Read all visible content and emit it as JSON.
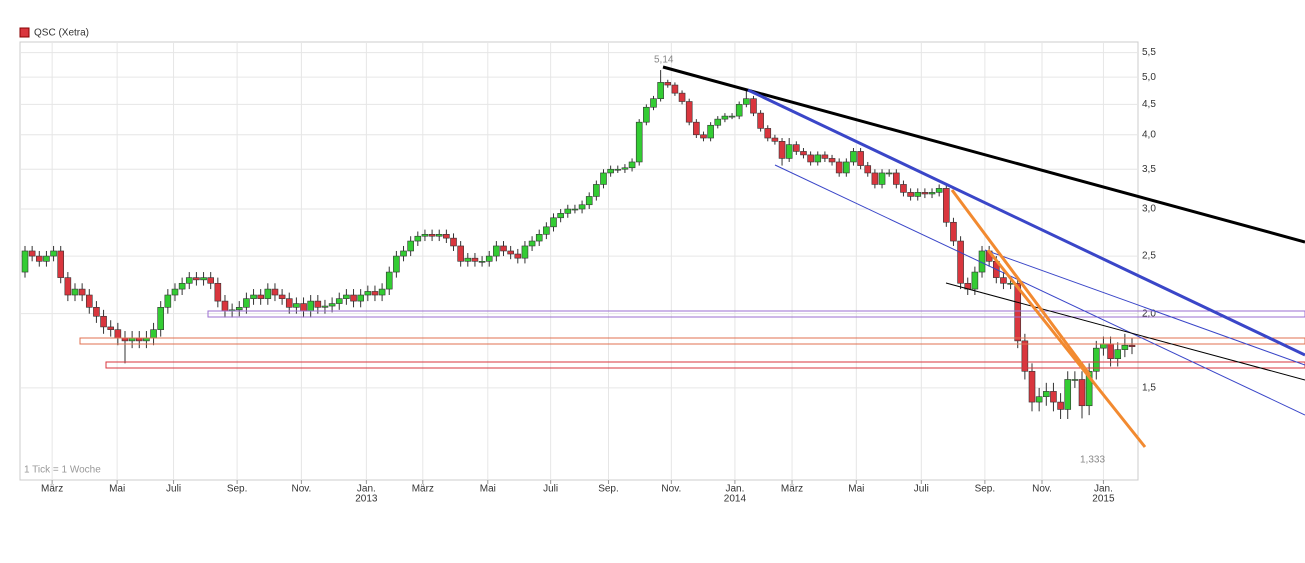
{
  "chart_data": {
    "type": "candlestick",
    "legend": "QSC (Xetra)",
    "footnote": "1 Tick = 1 Woche",
    "annotations": [
      {
        "text": "5,14"
      },
      {
        "text": "1,333"
      }
    ],
    "up_color": "#33cc33",
    "down_color": "#d9363e",
    "log_scale": true,
    "grid": true,
    "ylim": [
      1.05,
      5.73
    ],
    "yticks": [
      {
        "value": 1.5,
        "label": "1,5"
      },
      {
        "value": 2.0,
        "label": "2,0"
      },
      {
        "value": 2.5,
        "label": "2,5"
      },
      {
        "value": 3.0,
        "label": "3,0"
      },
      {
        "value": 3.5,
        "label": "3,5"
      },
      {
        "value": 4.0,
        "label": "4,0"
      },
      {
        "value": 4.5,
        "label": "4,5"
      },
      {
        "value": 5.0,
        "label": "5,0"
      },
      {
        "value": 5.5,
        "label": "5,5"
      }
    ],
    "xlim": [
      -0.7,
      155.7
    ],
    "xticks": [
      {
        "value": 3.8,
        "label": "März"
      },
      {
        "value": 12.9,
        "label": "Mai"
      },
      {
        "value": 20.8,
        "label": "Juli"
      },
      {
        "value": 29.7,
        "label": "Sep."
      },
      {
        "value": 38.7,
        "label": "Nov."
      },
      {
        "value": 47.8,
        "label": "Jan."
      },
      {
        "value": 55.7,
        "label": "März"
      },
      {
        "value": 64.8,
        "label": "Mai"
      },
      {
        "value": 73.6,
        "label": "Juli"
      },
      {
        "value": 81.7,
        "label": "Sep."
      },
      {
        "value": 90.5,
        "label": "Nov."
      },
      {
        "value": 99.4,
        "label": "Jan."
      },
      {
        "value": 107.4,
        "label": "März"
      },
      {
        "value": 116.4,
        "label": "Mai"
      },
      {
        "value": 125.5,
        "label": "Juli"
      },
      {
        "value": 134.4,
        "label": "Sep."
      },
      {
        "value": 142.4,
        "label": "Nov."
      },
      {
        "value": 151.0,
        "label": "Jan."
      }
    ],
    "year_labels": [
      {
        "value": 47.8,
        "label": "2013"
      },
      {
        "value": 99.4,
        "label": "2014"
      },
      {
        "value": 151.0,
        "label": "2015"
      }
    ],
    "open": [
      2.35,
      2.55,
      2.5,
      2.45,
      2.5,
      2.55,
      2.3,
      2.15,
      2.2,
      2.15,
      2.05,
      1.98,
      1.9,
      1.88,
      1.82,
      1.8,
      1.82,
      1.8,
      1.82,
      1.88,
      2.05,
      2.15,
      2.2,
      2.25,
      2.3,
      2.28,
      2.3,
      2.25,
      2.1,
      2.02,
      2.03,
      2.05,
      2.12,
      2.15,
      2.12,
      2.2,
      2.15,
      2.12,
      2.05,
      2.08,
      2.02,
      2.1,
      2.05,
      2.06,
      2.08,
      2.12,
      2.15,
      2.1,
      2.15,
      2.18,
      2.15,
      2.2,
      2.35,
      2.5,
      2.55,
      2.65,
      2.7,
      2.72,
      2.7,
      2.72,
      2.68,
      2.6,
      2.45,
      2.48,
      2.45,
      2.45,
      2.5,
      2.6,
      2.55,
      2.52,
      2.48,
      2.6,
      2.65,
      2.72,
      2.8,
      2.9,
      2.95,
      3.0,
      3.0,
      3.05,
      3.15,
      3.3,
      3.45,
      3.5,
      3.5,
      3.52,
      3.6,
      4.2,
      4.45,
      4.6,
      4.9,
      4.85,
      4.7,
      4.55,
      4.2,
      4.0,
      3.95,
      4.15,
      4.25,
      4.3,
      4.3,
      4.5,
      4.6,
      4.35,
      4.1,
      3.95,
      3.9,
      3.65,
      3.85,
      3.75,
      3.7,
      3.6,
      3.7,
      3.65,
      3.6,
      3.45,
      3.6,
      3.75,
      3.55,
      3.45,
      3.3,
      3.45,
      3.45,
      3.3,
      3.2,
      3.15,
      3.2,
      3.18,
      3.2,
      3.25,
      2.85,
      2.65,
      2.25,
      2.2,
      2.35,
      2.55,
      2.45,
      2.3,
      2.25,
      2.25,
      1.8,
      1.6,
      1.42,
      1.45,
      1.48,
      1.42,
      1.38,
      1.55,
      1.55,
      1.4,
      1.6,
      1.75,
      1.78,
      1.68,
      1.74,
      1.77
    ],
    "high": [
      2.6,
      2.6,
      2.55,
      2.55,
      2.6,
      2.6,
      2.35,
      2.25,
      2.25,
      2.2,
      2.1,
      2.03,
      1.95,
      1.93,
      1.87,
      1.87,
      1.87,
      1.87,
      1.93,
      2.1,
      2.2,
      2.25,
      2.3,
      2.35,
      2.35,
      2.35,
      2.35,
      2.3,
      2.15,
      2.08,
      2.1,
      2.17,
      2.2,
      2.2,
      2.25,
      2.25,
      2.2,
      2.17,
      2.13,
      2.13,
      2.15,
      2.15,
      2.11,
      2.13,
      2.17,
      2.2,
      2.2,
      2.2,
      2.23,
      2.23,
      2.25,
      2.4,
      2.55,
      2.6,
      2.7,
      2.75,
      2.77,
      2.77,
      2.77,
      2.77,
      2.73,
      2.65,
      2.53,
      2.53,
      2.5,
      2.55,
      2.65,
      2.65,
      2.6,
      2.57,
      2.65,
      2.7,
      2.77,
      2.85,
      2.95,
      3.0,
      3.05,
      3.05,
      3.1,
      3.2,
      3.35,
      3.5,
      3.55,
      3.55,
      3.57,
      3.65,
      4.25,
      4.5,
      4.65,
      5.14,
      4.95,
      4.9,
      4.75,
      4.6,
      4.25,
      4.05,
      4.2,
      4.3,
      4.35,
      4.35,
      4.55,
      4.75,
      4.65,
      4.4,
      4.15,
      4.0,
      3.95,
      3.95,
      3.9,
      3.8,
      3.75,
      3.75,
      3.75,
      3.7,
      3.65,
      3.65,
      3.8,
      3.8,
      3.6,
      3.5,
      3.5,
      3.5,
      3.5,
      3.35,
      3.25,
      3.25,
      3.25,
      3.25,
      3.3,
      3.3,
      2.9,
      2.7,
      2.3,
      2.4,
      2.6,
      2.6,
      2.5,
      2.35,
      2.3,
      2.3,
      1.85,
      1.65,
      1.5,
      1.53,
      1.53,
      1.47,
      1.6,
      1.6,
      1.6,
      1.65,
      1.8,
      1.83,
      1.83,
      1.79,
      1.85,
      1.82
    ],
    "low": [
      2.3,
      2.45,
      2.4,
      2.4,
      2.45,
      2.25,
      2.1,
      2.1,
      2.1,
      2.0,
      1.93,
      1.85,
      1.83,
      1.77,
      1.65,
      1.75,
      1.75,
      1.75,
      1.77,
      1.83,
      2.0,
      2.1,
      2.15,
      2.2,
      2.23,
      2.23,
      2.2,
      2.05,
      1.97,
      1.97,
      1.98,
      2.0,
      2.07,
      2.07,
      2.07,
      2.1,
      2.07,
      2.0,
      2.0,
      1.97,
      1.97,
      2.0,
      2.0,
      2.01,
      2.03,
      2.07,
      2.05,
      2.05,
      2.1,
      2.1,
      2.1,
      2.15,
      2.3,
      2.45,
      2.5,
      2.6,
      2.65,
      2.65,
      2.65,
      2.63,
      2.55,
      2.4,
      2.4,
      2.4,
      2.4,
      2.4,
      2.45,
      2.5,
      2.47,
      2.43,
      2.43,
      2.55,
      2.6,
      2.67,
      2.75,
      2.85,
      2.9,
      2.95,
      2.95,
      3.0,
      3.1,
      3.25,
      3.4,
      3.45,
      3.45,
      3.47,
      3.55,
      4.15,
      4.4,
      4.55,
      4.8,
      4.65,
      4.5,
      4.15,
      3.95,
      3.9,
      3.9,
      4.1,
      4.2,
      4.25,
      4.25,
      4.45,
      4.3,
      4.05,
      3.9,
      3.85,
      3.55,
      3.6,
      3.7,
      3.65,
      3.55,
      3.55,
      3.6,
      3.55,
      3.4,
      3.4,
      3.55,
      3.5,
      3.4,
      3.25,
      3.25,
      3.4,
      3.25,
      3.15,
      3.1,
      3.1,
      3.13,
      3.13,
      3.15,
      2.8,
      2.6,
      2.2,
      2.15,
      2.15,
      2.3,
      2.4,
      2.25,
      2.2,
      2.2,
      1.75,
      1.55,
      1.37,
      1.37,
      1.4,
      1.37,
      1.33,
      1.33,
      1.5,
      1.333,
      1.35,
      1.55,
      1.7,
      1.63,
      1.63,
      1.69,
      1.71
    ],
    "close": [
      2.55,
      2.5,
      2.45,
      2.5,
      2.55,
      2.3,
      2.15,
      2.2,
      2.15,
      2.05,
      1.98,
      1.9,
      1.88,
      1.82,
      1.8,
      1.82,
      1.8,
      1.82,
      1.88,
      2.05,
      2.15,
      2.2,
      2.25,
      2.3,
      2.28,
      2.3,
      2.25,
      2.1,
      2.02,
      2.03,
      2.05,
      2.12,
      2.15,
      2.12,
      2.2,
      2.15,
      2.12,
      2.05,
      2.08,
      2.02,
      2.1,
      2.05,
      2.06,
      2.08,
      2.12,
      2.15,
      2.1,
      2.15,
      2.18,
      2.15,
      2.2,
      2.35,
      2.5,
      2.55,
      2.65,
      2.7,
      2.72,
      2.7,
      2.72,
      2.68,
      2.6,
      2.45,
      2.48,
      2.45,
      2.45,
      2.5,
      2.6,
      2.55,
      2.52,
      2.48,
      2.6,
      2.65,
      2.72,
      2.8,
      2.9,
      2.95,
      3.0,
      3.0,
      3.05,
      3.15,
      3.3,
      3.45,
      3.5,
      3.5,
      3.52,
      3.6,
      4.2,
      4.45,
      4.6,
      4.9,
      4.85,
      4.7,
      4.55,
      4.2,
      4.0,
      3.95,
      4.15,
      4.25,
      4.3,
      4.3,
      4.5,
      4.6,
      4.35,
      4.1,
      3.95,
      3.9,
      3.65,
      3.85,
      3.75,
      3.7,
      3.6,
      3.7,
      3.65,
      3.6,
      3.45,
      3.6,
      3.75,
      3.55,
      3.45,
      3.3,
      3.45,
      3.45,
      3.3,
      3.2,
      3.15,
      3.2,
      3.18,
      3.2,
      3.25,
      2.85,
      2.65,
      2.25,
      2.2,
      2.35,
      2.55,
      2.45,
      2.3,
      2.25,
      2.25,
      1.8,
      1.6,
      1.42,
      1.45,
      1.48,
      1.42,
      1.38,
      1.55,
      1.55,
      1.4,
      1.6,
      1.75,
      1.78,
      1.68,
      1.74,
      1.77,
      1.76
    ]
  }
}
